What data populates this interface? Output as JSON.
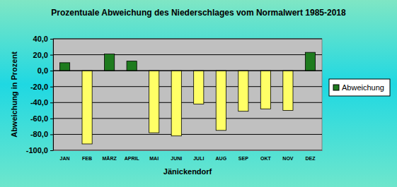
{
  "chart_data": {
    "type": "bar",
    "title": "Prozentuale Abweichung des Niederschlages vom Normalwert 1985-2018",
    "x_label": "Jänickendorf",
    "y_label": "Abweichung in Prozent",
    "categories": [
      "JAN",
      "FEB",
      "MÄRZ",
      "APRIL",
      "MAI",
      "JUNI",
      "JULI",
      "AUG",
      "SEP",
      "OKT",
      "NOV",
      "DEZ"
    ],
    "series": [
      {
        "name": "Abweichung",
        "color": "#1e7b1e",
        "values": [
          10,
          -92,
          21,
          12,
          -78,
          -82,
          -42,
          -75,
          -51,
          -48,
          -50,
          23
        ],
        "colors": [
          "#1e7b1e",
          "#ffff66",
          "#1e7b1e",
          "#1e7b1e",
          "#ffff66",
          "#ffff66",
          "#ffff66",
          "#ffff66",
          "#ffff66",
          "#ffff66",
          "#ffff66",
          "#1e7b1e"
        ]
      }
    ],
    "ylim": [
      -100,
      40
    ],
    "yticks": [
      {
        "value": -100,
        "label": "-100,0"
      },
      {
        "value": -80,
        "label": "-80,0"
      },
      {
        "value": -60,
        "label": "-60,0"
      },
      {
        "value": -40,
        "label": "-40,0"
      },
      {
        "value": -20,
        "label": "-20,0"
      },
      {
        "value": 0,
        "label": "0,0"
      },
      {
        "value": 20,
        "label": "20,0"
      },
      {
        "value": 40,
        "label": "40,0"
      }
    ],
    "grid": true,
    "legend": "right"
  }
}
